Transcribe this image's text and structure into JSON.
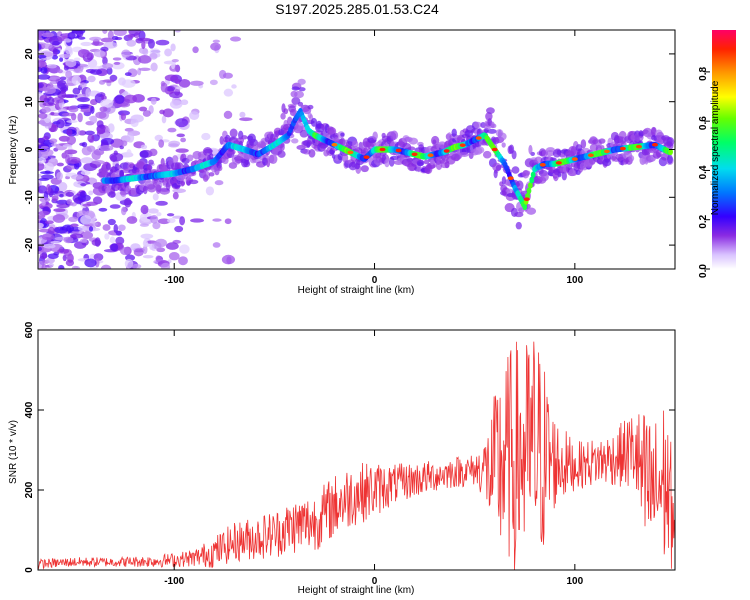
{
  "chart_data": [
    {
      "type": "heatmap",
      "title": "S197.2025.285.01.53.C24",
      "xlabel": "Height of straight line (km)",
      "ylabel": "Frequency (Hz)",
      "xlim": [
        -168,
        150
      ],
      "ylim": [
        -25,
        25
      ],
      "xticks": [
        -100,
        0,
        100
      ],
      "yticks": [
        -20,
        -10,
        0,
        10,
        20
      ],
      "colorbar": {
        "label": "Normalized spectral amplitude",
        "range": [
          0,
          0.97
        ],
        "ticks": [
          0.0,
          0.2,
          0.4,
          0.6,
          0.8
        ]
      },
      "ridge": {
        "x": [
          -130,
          -120,
          -110,
          -100,
          -90,
          -80,
          -73,
          -65,
          -58,
          -50,
          -43,
          -40,
          -37,
          -33,
          -30,
          -25,
          -20,
          -15,
          -10,
          -5,
          0,
          5,
          10,
          15,
          20,
          25,
          30,
          35,
          40,
          45,
          50,
          55,
          60,
          65,
          70,
          75,
          80,
          85,
          90,
          100,
          110,
          120,
          130,
          140,
          147
        ],
        "y": [
          -6.5,
          -6,
          -5.5,
          -5,
          -4,
          -2.5,
          1,
          0,
          -1,
          1,
          3,
          6,
          8,
          4,
          3,
          2,
          1,
          0,
          -1,
          -2,
          0,
          0,
          0,
          -0.5,
          -1,
          -1.5,
          -1,
          -0.5,
          0.5,
          1,
          2,
          3,
          0,
          -3,
          -8,
          -12,
          -4,
          -3,
          -3,
          -2,
          -1,
          0,
          0.5,
          1,
          -0.5
        ]
      }
    },
    {
      "type": "line",
      "title": "",
      "xlabel": "Height of straight line (km)",
      "ylabel": "SNR (10 * v/v)",
      "xlim": [
        -168,
        150
      ],
      "ylim": [
        0,
        600
      ],
      "xticks": [
        -100,
        0,
        100
      ],
      "yticks": [
        0,
        200,
        400,
        600
      ],
      "series": [
        {
          "name": "SNR",
          "color": "#ee3333",
          "x": [
            -168,
            -150,
            -130,
            -110,
            -100,
            -90,
            -80,
            -70,
            -60,
            -50,
            -40,
            -30,
            -20,
            -10,
            0,
            10,
            20,
            30,
            40,
            50,
            55,
            58,
            62,
            66,
            70,
            75,
            80,
            85,
            90,
            100,
            110,
            120,
            125,
            130,
            135,
            140,
            145,
            150
          ],
          "y": [
            15,
            20,
            20,
            22,
            25,
            30,
            45,
            70,
            80,
            90,
            110,
            120,
            160,
            190,
            200,
            215,
            225,
            235,
            245,
            250,
            255,
            240,
            260,
            280,
            280,
            290,
            300,
            280,
            270,
            260,
            270,
            280,
            290,
            300,
            200,
            200,
            220,
            120
          ],
          "spread": [
            12,
            12,
            12,
            15,
            18,
            22,
            40,
            50,
            55,
            60,
            70,
            75,
            80,
            80,
            70,
            50,
            45,
            40,
            40,
            40,
            80,
            150,
            240,
            260,
            300,
            280,
            320,
            240,
            120,
            60,
            60,
            70,
            90,
            110,
            200,
            180,
            220,
            120
          ]
        }
      ]
    }
  ]
}
